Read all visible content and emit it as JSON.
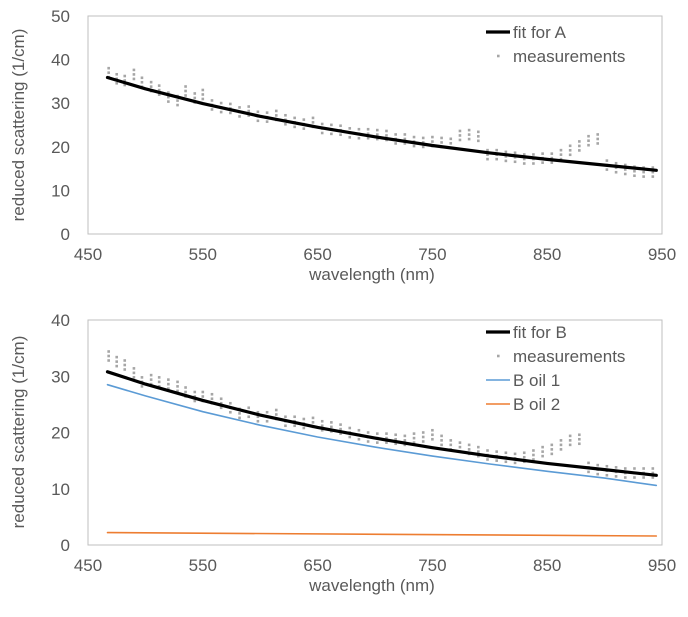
{
  "chart_data": [
    {
      "type": "line",
      "title": "",
      "xlabel": "wavelength (nm)",
      "ylabel": "reduced scattering (1/cm)",
      "xlim": [
        450,
        950
      ],
      "ylim": [
        0,
        50
      ],
      "xticks": [
        450,
        550,
        650,
        750,
        850,
        950
      ],
      "yticks": [
        0,
        10,
        20,
        30,
        40,
        50
      ],
      "grid": false,
      "legend": "top-right",
      "series": [
        {
          "name": "fit for A",
          "style": "line",
          "color": "#000000",
          "x": [
            467,
            500,
            550,
            600,
            650,
            700,
            750,
            800,
            850,
            900,
            945
          ],
          "y": [
            35.9,
            33.3,
            29.9,
            27.0,
            24.5,
            22.3,
            20.3,
            18.6,
            17.1,
            15.8,
            14.6
          ]
        },
        {
          "name": "measurements",
          "style": "markers",
          "color": "#a6a6a6",
          "x": [
            468,
            475,
            482,
            490,
            497,
            505,
            512,
            520,
            528,
            535,
            543,
            550,
            558,
            566,
            574,
            582,
            590,
            598,
            606,
            614,
            622,
            630,
            638,
            646,
            654,
            662,
            670,
            678,
            686,
            694,
            702,
            710,
            718,
            726,
            734,
            742,
            750,
            758,
            766,
            774,
            782,
            790,
            798,
            806,
            814,
            822,
            830,
            838,
            846,
            854,
            862,
            870,
            878,
            886,
            894,
            902,
            910,
            918,
            926,
            934,
            942
          ],
          "y": [
            37.0,
            35.6,
            35.2,
            36.6,
            34.8,
            33.8,
            33.0,
            31.4,
            30.6,
            32.8,
            31.2,
            32.0,
            29.6,
            29.0,
            28.8,
            28.0,
            28.2,
            27.0,
            26.8,
            27.2,
            26.2,
            25.6,
            25.2,
            25.6,
            24.2,
            24.0,
            23.8,
            23.2,
            23.0,
            23.0,
            22.8,
            22.6,
            21.8,
            21.8,
            21.2,
            21.0,
            21.2,
            21.0,
            20.8,
            22.6,
            22.8,
            22.4,
            18.2,
            18.2,
            17.8,
            17.6,
            17.2,
            17.2,
            17.4,
            17.4,
            18.2,
            19.2,
            20.2,
            21.4,
            21.8,
            15.8,
            15.2,
            14.8,
            14.4,
            14.2,
            14.2
          ]
        }
      ]
    },
    {
      "type": "line",
      "title": "",
      "xlabel": "wavelength (nm)",
      "ylabel": "reduced scattering (1/cm)",
      "xlim": [
        450,
        950
      ],
      "ylim": [
        0,
        40
      ],
      "xticks": [
        450,
        550,
        650,
        750,
        850,
        950
      ],
      "yticks": [
        0,
        10,
        20,
        30,
        40
      ],
      "grid": false,
      "legend": "top-right",
      "series": [
        {
          "name": "fit for B",
          "style": "line",
          "color": "#000000",
          "x": [
            467,
            500,
            550,
            600,
            650,
            700,
            750,
            800,
            850,
            900,
            945
          ],
          "y": [
            30.8,
            28.6,
            25.7,
            23.1,
            20.9,
            19.0,
            17.3,
            15.8,
            14.5,
            13.4,
            12.4
          ]
        },
        {
          "name": "measurements",
          "style": "markers",
          "color": "#a6a6a6",
          "x": [
            468,
            475,
            482,
            490,
            497,
            505,
            512,
            520,
            528,
            535,
            543,
            550,
            558,
            566,
            574,
            582,
            590,
            598,
            606,
            614,
            622,
            630,
            638,
            646,
            654,
            662,
            670,
            678,
            686,
            694,
            702,
            710,
            718,
            726,
            734,
            742,
            750,
            758,
            766,
            774,
            782,
            790,
            798,
            806,
            814,
            822,
            830,
            838,
            846,
            854,
            862,
            870,
            878,
            886,
            894,
            902,
            910,
            918,
            926,
            934,
            942
          ],
          "y": [
            33.6,
            32.6,
            32.0,
            30.6,
            29.0,
            29.4,
            29.0,
            28.6,
            28.2,
            27.2,
            26.4,
            26.4,
            26.0,
            25.2,
            24.4,
            23.4,
            23.6,
            22.8,
            22.8,
            23.2,
            22.0,
            22.0,
            21.6,
            21.8,
            21.2,
            21.0,
            20.6,
            20.0,
            19.6,
            19.2,
            19.0,
            19.0,
            18.8,
            18.6,
            19.0,
            19.2,
            19.6,
            18.6,
            17.8,
            17.4,
            17.0,
            16.6,
            16.0,
            15.8,
            15.6,
            15.4,
            15.6,
            16.0,
            16.6,
            17.0,
            17.8,
            18.6,
            18.8,
            13.8,
            13.4,
            13.2,
            13.0,
            12.8,
            12.8,
            12.8,
            12.8
          ]
        },
        {
          "name": "B oil 1",
          "style": "line",
          "color": "#5b9bd5",
          "x": [
            467,
            500,
            550,
            600,
            650,
            700,
            750,
            800,
            850,
            900,
            945
          ],
          "y": [
            28.5,
            26.5,
            23.7,
            21.3,
            19.2,
            17.4,
            15.8,
            14.4,
            13.1,
            11.9,
            10.6
          ]
        },
        {
          "name": "B oil 2",
          "style": "line",
          "color": "#ed7d31",
          "x": [
            467,
            945
          ],
          "y": [
            2.2,
            1.6
          ]
        }
      ]
    }
  ]
}
